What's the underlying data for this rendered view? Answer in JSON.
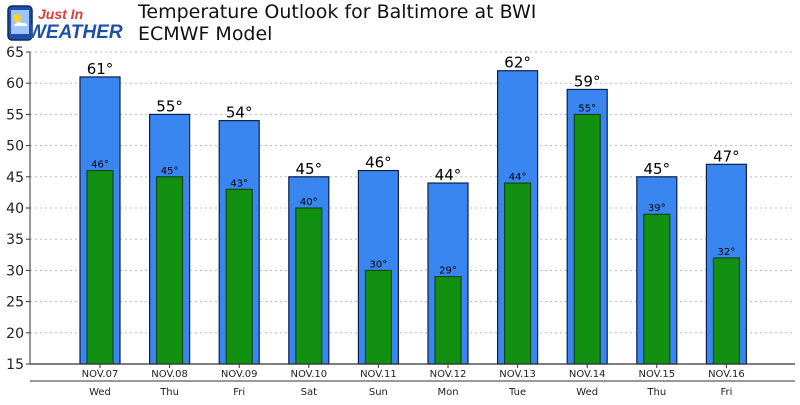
{
  "logo": {
    "line1": "Just In",
    "line2": "WEATHER"
  },
  "header": {
    "title": "Temperature Outlook for Baltimore at BWI",
    "subtitle": "ECMWF Model"
  },
  "colors": {
    "high_bar": "#3a86f0",
    "low_bar": "#119011",
    "grid": "#bbbbbb",
    "bar_stroke": "#0a1f4a"
  },
  "chart_data": {
    "type": "bar",
    "title": "Temperature Outlook for Baltimore at BWI",
    "subtitle": "ECMWF Model",
    "categories": [
      "NOV.07",
      "NOV.08",
      "NOV.09",
      "NOV.10",
      "NOV.11",
      "NOV.12",
      "NOV.13",
      "NOV.14",
      "NOV.15",
      "NOV.16"
    ],
    "days": [
      "Wed",
      "Thu",
      "Fri",
      "Sat",
      "Sun",
      "Mon",
      "Tue",
      "Wed",
      "Thu",
      "Fri"
    ],
    "series": [
      {
        "values": [
          61,
          55,
          54,
          45,
          46,
          44,
          62,
          59,
          45,
          47
        ],
        "labels": [
          "61°",
          "55°",
          "54°",
          "45°",
          "46°",
          "44°",
          "62°",
          "59°",
          "45°",
          "47°"
        ],
        "color": "#3a86f0"
      },
      {
        "values": [
          46,
          45,
          43,
          40,
          30,
          29,
          44,
          55,
          39,
          32
        ],
        "labels": [
          "46°",
          "45°",
          "43°",
          "40°",
          "30°",
          "29°",
          "44°",
          "55°",
          "39°",
          "32°"
        ],
        "color": "#119011"
      }
    ],
    "ylim": [
      15,
      65
    ],
    "yticks": [
      15,
      20,
      25,
      30,
      35,
      40,
      45,
      50,
      55,
      60,
      65
    ],
    "grid": true,
    "grid_style": "dotted",
    "legend": "none"
  }
}
